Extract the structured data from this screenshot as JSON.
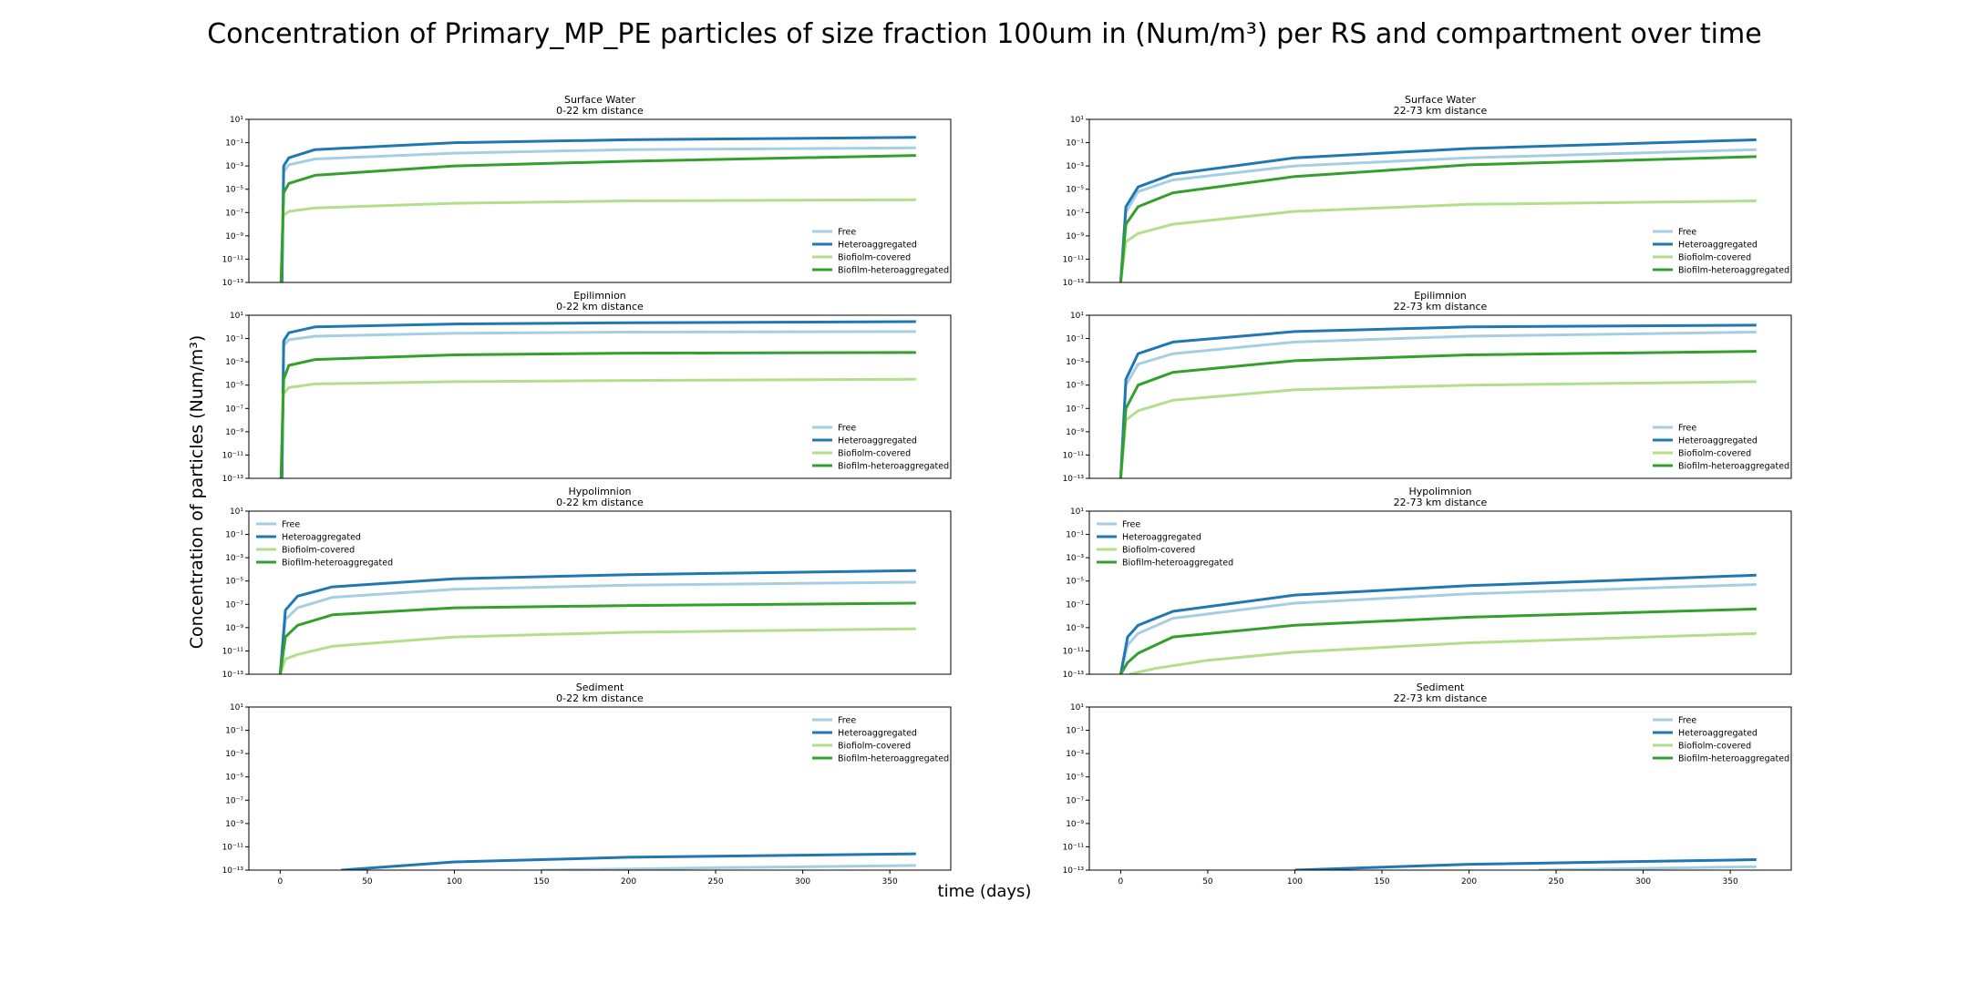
{
  "figure": {
    "title": "Concentration of Primary_MP_PE particles of size fraction 100um in (Num/m³) per RS and compartment over time",
    "ylabel": "Concentration of particles (Num/m³)",
    "xlabel": "time (days)"
  },
  "chart_data": {
    "type": "line",
    "scale": {
      "y": "log",
      "ylim_exp": [
        -13,
        1
      ],
      "ytick_exps": [
        1,
        -1,
        -3,
        -5,
        -7,
        -9,
        -11,
        -13
      ],
      "xlim": [
        -18,
        385
      ],
      "xticks": [
        0,
        50,
        100,
        150,
        200,
        250,
        300,
        350
      ]
    },
    "grid": false,
    "legend_labels": [
      "Free",
      "Heteroaggregated",
      "Biofiolm-covered",
      "Biofilm-heteroaggregated"
    ],
    "colors": {
      "Free": "#a6cee3",
      "Heteroaggregated": "#1f78b4",
      "Biofiolm-covered": "#b2df8a",
      "Biofilm-heteroaggregated": "#33a02c"
    },
    "panels": [
      {
        "compartment": "Surface Water",
        "distance": "0-22 km distance",
        "legend": "lower-right",
        "series": [
          {
            "name": "Free",
            "points": [
              [
                1,
                -13
              ],
              [
                2,
                -3.5
              ],
              [
                5,
                -2.9
              ],
              [
                20,
                -2.4
              ],
              [
                100,
                -1.9
              ],
              [
                200,
                -1.6
              ],
              [
                365,
                -1.45
              ]
            ]
          },
          {
            "name": "Heteroaggregated",
            "points": [
              [
                1,
                -13
              ],
              [
                2,
                -3.0
              ],
              [
                5,
                -2.3
              ],
              [
                20,
                -1.6
              ],
              [
                100,
                -1.0
              ],
              [
                200,
                -0.75
              ],
              [
                365,
                -0.55
              ]
            ]
          },
          {
            "name": "Biofiolm-covered",
            "points": [
              [
                0.5,
                -13
              ],
              [
                1.5,
                -7.3
              ],
              [
                5,
                -6.9
              ],
              [
                20,
                -6.6
              ],
              [
                100,
                -6.2
              ],
              [
                200,
                -6.0
              ],
              [
                365,
                -5.9
              ]
            ]
          },
          {
            "name": "Biofilm-heteroaggregated",
            "points": [
              [
                0.5,
                -13
              ],
              [
                2,
                -5.3
              ],
              [
                5,
                -4.5
              ],
              [
                20,
                -3.8
              ],
              [
                100,
                -3.0
              ],
              [
                200,
                -2.6
              ],
              [
                365,
                -2.1
              ]
            ]
          }
        ]
      },
      {
        "compartment": "Surface Water",
        "distance": "22-73 km distance",
        "legend": "lower-right",
        "series": [
          {
            "name": "Free",
            "points": [
              [
                0,
                -13
              ],
              [
                3,
                -7
              ],
              [
                10,
                -5.2
              ],
              [
                30,
                -4.2
              ],
              [
                100,
                -3.0
              ],
              [
                200,
                -2.3
              ],
              [
                365,
                -1.6
              ]
            ]
          },
          {
            "name": "Heteroaggregated",
            "points": [
              [
                0,
                -13
              ],
              [
                3,
                -6.5
              ],
              [
                10,
                -4.8
              ],
              [
                30,
                -3.7
              ],
              [
                100,
                -2.3
              ],
              [
                200,
                -1.5
              ],
              [
                365,
                -0.75
              ]
            ]
          },
          {
            "name": "Biofiolm-covered",
            "points": [
              [
                0,
                -13
              ],
              [
                3,
                -9.5
              ],
              [
                10,
                -8.8
              ],
              [
                30,
                -8.0
              ],
              [
                100,
                -6.9
              ],
              [
                200,
                -6.3
              ],
              [
                365,
                -6.0
              ]
            ]
          },
          {
            "name": "Biofilm-heteroaggregated",
            "points": [
              [
                0,
                -13
              ],
              [
                3,
                -8
              ],
              [
                10,
                -6.5
              ],
              [
                30,
                -5.3
              ],
              [
                100,
                -3.9
              ],
              [
                200,
                -2.9
              ],
              [
                365,
                -2.2
              ]
            ]
          }
        ]
      },
      {
        "compartment": "Epilimnion",
        "distance": "0-22 km distance",
        "legend": "lower-right",
        "series": [
          {
            "name": "Free",
            "points": [
              [
                1,
                -13
              ],
              [
                2,
                -1.6
              ],
              [
                5,
                -1.1
              ],
              [
                20,
                -0.8
              ],
              [
                100,
                -0.55
              ],
              [
                200,
                -0.45
              ],
              [
                365,
                -0.4
              ]
            ]
          },
          {
            "name": "Heteroaggregated",
            "points": [
              [
                1,
                -13
              ],
              [
                2,
                -1.2
              ],
              [
                5,
                -0.5
              ],
              [
                20,
                0.0
              ],
              [
                100,
                0.25
              ],
              [
                200,
                0.35
              ],
              [
                365,
                0.45
              ]
            ]
          },
          {
            "name": "Biofiolm-covered",
            "points": [
              [
                0.5,
                -13
              ],
              [
                1.5,
                -5.8
              ],
              [
                5,
                -5.2
              ],
              [
                20,
                -4.9
              ],
              [
                100,
                -4.7
              ],
              [
                200,
                -4.6
              ],
              [
                365,
                -4.5
              ]
            ]
          },
          {
            "name": "Biofilm-heteroaggregated",
            "points": [
              [
                0.5,
                -13
              ],
              [
                2,
                -4.5
              ],
              [
                5,
                -3.3
              ],
              [
                20,
                -2.8
              ],
              [
                100,
                -2.4
              ],
              [
                200,
                -2.25
              ],
              [
                365,
                -2.2
              ]
            ]
          }
        ]
      },
      {
        "compartment": "Epilimnion",
        "distance": "22-73 km distance",
        "legend": "lower-right",
        "series": [
          {
            "name": "Free",
            "points": [
              [
                0,
                -13
              ],
              [
                3,
                -5
              ],
              [
                10,
                -3.2
              ],
              [
                30,
                -2.3
              ],
              [
                100,
                -1.3
              ],
              [
                200,
                -0.8
              ],
              [
                365,
                -0.45
              ]
            ]
          },
          {
            "name": "Heteroaggregated",
            "points": [
              [
                0,
                -13
              ],
              [
                3,
                -4.5
              ],
              [
                10,
                -2.3
              ],
              [
                30,
                -1.3
              ],
              [
                100,
                -0.4
              ],
              [
                200,
                0.0
              ],
              [
                365,
                0.15
              ]
            ]
          },
          {
            "name": "Biofiolm-covered",
            "points": [
              [
                0,
                -13
              ],
              [
                3,
                -8.0
              ],
              [
                10,
                -7.2
              ],
              [
                30,
                -6.3
              ],
              [
                100,
                -5.4
              ],
              [
                200,
                -5.0
              ],
              [
                365,
                -4.7
              ]
            ]
          },
          {
            "name": "Biofilm-heteroaggregated",
            "points": [
              [
                0,
                -13
              ],
              [
                3,
                -7.0
              ],
              [
                10,
                -5.0
              ],
              [
                30,
                -3.9
              ],
              [
                100,
                -2.9
              ],
              [
                200,
                -2.4
              ],
              [
                365,
                -2.1
              ]
            ]
          }
        ]
      },
      {
        "compartment": "Hypolimnion",
        "distance": "0-22 km distance",
        "legend": "upper-left",
        "series": [
          {
            "name": "Free",
            "points": [
              [
                0,
                -13
              ],
              [
                3,
                -8.3
              ],
              [
                10,
                -7.3
              ],
              [
                30,
                -6.4
              ],
              [
                100,
                -5.7
              ],
              [
                200,
                -5.35
              ],
              [
                365,
                -5.1
              ]
            ]
          },
          {
            "name": "Heteroaggregated",
            "points": [
              [
                0,
                -13
              ],
              [
                3,
                -7.5
              ],
              [
                10,
                -6.3
              ],
              [
                30,
                -5.5
              ],
              [
                100,
                -4.8
              ],
              [
                200,
                -4.45
              ],
              [
                365,
                -4.1
              ]
            ]
          },
          {
            "name": "Biofiolm-covered",
            "points": [
              [
                0,
                -13
              ],
              [
                3,
                -11.7
              ],
              [
                10,
                -11.3
              ],
              [
                30,
                -10.6
              ],
              [
                100,
                -9.8
              ],
              [
                200,
                -9.4
              ],
              [
                365,
                -9.1
              ]
            ]
          },
          {
            "name": "Biofilm-heteroaggregated",
            "points": [
              [
                0,
                -13
              ],
              [
                3,
                -9.8
              ],
              [
                10,
                -8.8
              ],
              [
                30,
                -7.9
              ],
              [
                100,
                -7.3
              ],
              [
                200,
                -7.1
              ],
              [
                365,
                -6.9
              ]
            ]
          }
        ]
      },
      {
        "compartment": "Hypolimnion",
        "distance": "22-73 km distance",
        "legend": "upper-left",
        "series": [
          {
            "name": "Free",
            "points": [
              [
                0,
                -13
              ],
              [
                4,
                -10.5
              ],
              [
                10,
                -9.5
              ],
              [
                30,
                -8.2
              ],
              [
                100,
                -6.9
              ],
              [
                200,
                -6.1
              ],
              [
                365,
                -5.3
              ]
            ]
          },
          {
            "name": "Heteroaggregated",
            "points": [
              [
                0,
                -13
              ],
              [
                4,
                -9.8
              ],
              [
                10,
                -8.8
              ],
              [
                30,
                -7.6
              ],
              [
                100,
                -6.2
              ],
              [
                200,
                -5.4
              ],
              [
                365,
                -4.5
              ]
            ]
          },
          {
            "name": "Biofiolm-covered",
            "points": [
              [
                5,
                -13
              ],
              [
                20,
                -12.5
              ],
              [
                50,
                -11.8
              ],
              [
                100,
                -11.1
              ],
              [
                200,
                -10.3
              ],
              [
                365,
                -9.5
              ]
            ]
          },
          {
            "name": "Biofilm-heteroaggregated",
            "points": [
              [
                0,
                -13
              ],
              [
                4,
                -12
              ],
              [
                10,
                -11.2
              ],
              [
                30,
                -9.8
              ],
              [
                100,
                -8.8
              ],
              [
                200,
                -8.1
              ],
              [
                365,
                -7.4
              ]
            ]
          }
        ]
      },
      {
        "compartment": "Sediment",
        "distance": "0-22 km distance",
        "legend": "upper-right",
        "series": [
          {
            "name": "Free",
            "points": [
              [
                150,
                -13
              ],
              [
                250,
                -12.8
              ],
              [
                365,
                -12.6
              ]
            ]
          },
          {
            "name": "Heteroaggregated",
            "points": [
              [
                35,
                -13
              ],
              [
                100,
                -12.3
              ],
              [
                200,
                -11.9
              ],
              [
                365,
                -11.6
              ]
            ]
          },
          {
            "name": "Biofiolm-covered",
            "points": []
          },
          {
            "name": "Biofilm-heteroaggregated",
            "points": []
          }
        ]
      },
      {
        "compartment": "Sediment",
        "distance": "22-73 km distance",
        "legend": "upper-right",
        "series": [
          {
            "name": "Free",
            "points": [
              [
                240,
                -13
              ],
              [
                300,
                -12.85
              ],
              [
                365,
                -12.7
              ]
            ]
          },
          {
            "name": "Heteroaggregated",
            "points": [
              [
                100,
                -13
              ],
              [
                200,
                -12.5
              ],
              [
                365,
                -12.1
              ]
            ]
          },
          {
            "name": "Biofiolm-covered",
            "points": []
          },
          {
            "name": "Biofilm-heteroaggregated",
            "points": []
          }
        ]
      }
    ]
  }
}
